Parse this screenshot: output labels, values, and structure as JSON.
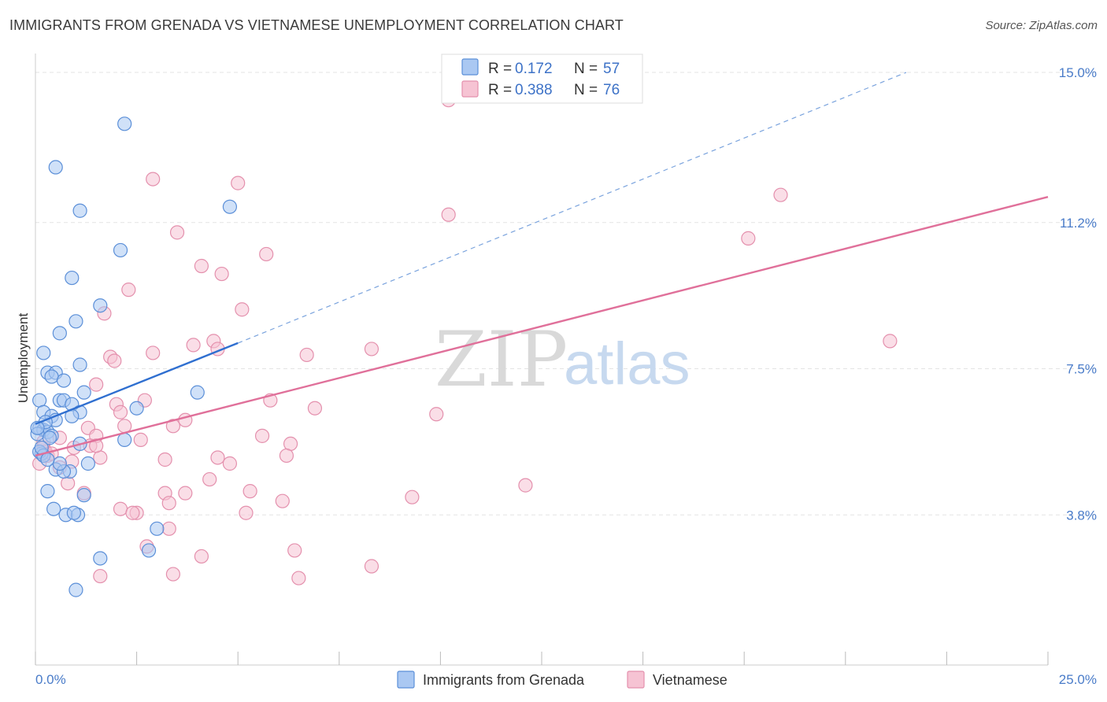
{
  "title": "IMMIGRANTS FROM GRENADA VS VIETNAMESE UNEMPLOYMENT CORRELATION CHART",
  "source": "Source: ZipAtlas.com",
  "watermark": {
    "zip": "ZIP",
    "atlas": "atlas"
  },
  "colors": {
    "blue_fill": "#aac8f2",
    "blue_stroke": "#5b8fd8",
    "blue_line": "#2f6fd0",
    "pink_fill": "#f6c3d3",
    "pink_stroke": "#e490ad",
    "pink_line": "#e0709a",
    "grid": "#e3e3e3",
    "tick_label": "#4a7cc9"
  },
  "legend": {
    "rows": [
      {
        "r_label": "R =",
        "r_value": "0.172",
        "n_label": "N =",
        "n_value": "57"
      },
      {
        "r_label": "R =",
        "r_value": "0.388",
        "n_label": "N =",
        "n_value": "76"
      }
    ]
  },
  "bottom_legend": [
    "Immigrants from Grenada",
    "Vietnamese"
  ],
  "chart_data": {
    "type": "scatter",
    "title": "IMMIGRANTS FROM GRENADA VS VIETNAMESE UNEMPLOYMENT CORRELATION CHART",
    "xlabel": "",
    "ylabel": "Unemployment",
    "xlim": [
      0,
      25
    ],
    "ylim": [
      0,
      15.3
    ],
    "x_tick_labels": [
      "0.0%",
      "25.0%"
    ],
    "y_ticks": [
      3.8,
      7.5,
      11.2,
      15.0
    ],
    "y_tick_labels": [
      "3.8%",
      "7.5%",
      "11.2%",
      "15.0%"
    ],
    "grid": true,
    "legend_position": "top-center",
    "series": [
      {
        "name": "Immigrants from Grenada",
        "r": 0.172,
        "n": 57,
        "trend": {
          "x0": 0,
          "y0": 6.1,
          "x1": 5,
          "y1": 8.15,
          "dashed_to_x": 21.5,
          "dashed_to_y": 15.0
        },
        "points": [
          [
            2.2,
            13.7
          ],
          [
            0.5,
            12.6
          ],
          [
            1.1,
            11.5
          ],
          [
            4.8,
            11.6
          ],
          [
            2.1,
            10.5
          ],
          [
            0.9,
            9.8
          ],
          [
            1.6,
            9.1
          ],
          [
            1.0,
            8.7
          ],
          [
            0.6,
            8.4
          ],
          [
            0.2,
            7.9
          ],
          [
            0.3,
            7.4
          ],
          [
            0.5,
            7.4
          ],
          [
            0.4,
            7.3
          ],
          [
            0.7,
            7.2
          ],
          [
            1.1,
            7.6
          ],
          [
            1.2,
            6.9
          ],
          [
            4.0,
            6.9
          ],
          [
            0.1,
            6.7
          ],
          [
            0.6,
            6.7
          ],
          [
            0.7,
            6.7
          ],
          [
            0.9,
            6.6
          ],
          [
            2.5,
            6.5
          ],
          [
            0.2,
            6.4
          ],
          [
            1.1,
            6.4
          ],
          [
            0.9,
            6.3
          ],
          [
            0.4,
            6.3
          ],
          [
            0.5,
            6.2
          ],
          [
            0.1,
            6.0
          ],
          [
            0.2,
            5.95
          ],
          [
            0.3,
            5.9
          ],
          [
            0.05,
            5.85
          ],
          [
            0.4,
            5.8
          ],
          [
            0.35,
            5.75
          ],
          [
            2.2,
            5.7
          ],
          [
            1.1,
            5.6
          ],
          [
            0.15,
            5.35
          ],
          [
            0.1,
            5.4
          ],
          [
            0.2,
            5.3
          ],
          [
            1.3,
            5.1
          ],
          [
            0.5,
            4.95
          ],
          [
            0.85,
            4.9
          ],
          [
            0.7,
            4.9
          ],
          [
            0.3,
            4.4
          ],
          [
            1.2,
            4.3
          ],
          [
            0.45,
            3.95
          ],
          [
            0.75,
            3.8
          ],
          [
            1.05,
            3.8
          ],
          [
            0.95,
            3.85
          ],
          [
            3.0,
            3.45
          ],
          [
            2.8,
            2.9
          ],
          [
            1.6,
            2.7
          ],
          [
            1.0,
            1.9
          ],
          [
            0.15,
            5.5
          ],
          [
            0.25,
            6.15
          ],
          [
            0.05,
            6.0
          ],
          [
            0.6,
            5.1
          ],
          [
            0.3,
            5.2
          ]
        ]
      },
      {
        "name": "Vietnamese",
        "r": 0.388,
        "n": 76,
        "trend": {
          "x0": 0,
          "y0": 5.3,
          "x1": 25,
          "y1": 11.85
        },
        "points": [
          [
            10.2,
            14.3
          ],
          [
            2.9,
            12.3
          ],
          [
            5.0,
            12.2
          ],
          [
            18.4,
            11.9
          ],
          [
            10.2,
            11.4
          ],
          [
            17.6,
            10.8
          ],
          [
            3.5,
            10.95
          ],
          [
            5.7,
            10.4
          ],
          [
            4.1,
            10.1
          ],
          [
            4.6,
            9.9
          ],
          [
            2.3,
            9.5
          ],
          [
            5.1,
            9.0
          ],
          [
            1.7,
            8.9
          ],
          [
            21.1,
            8.2
          ],
          [
            3.9,
            8.1
          ],
          [
            4.4,
            8.2
          ],
          [
            4.5,
            8.0
          ],
          [
            8.3,
            8.0
          ],
          [
            6.7,
            7.85
          ],
          [
            2.9,
            7.9
          ],
          [
            1.85,
            7.8
          ],
          [
            1.95,
            7.7
          ],
          [
            1.5,
            7.1
          ],
          [
            2.7,
            6.7
          ],
          [
            5.8,
            6.7
          ],
          [
            2.0,
            6.6
          ],
          [
            6.9,
            6.5
          ],
          [
            2.1,
            6.4
          ],
          [
            9.9,
            6.35
          ],
          [
            3.7,
            6.2
          ],
          [
            2.2,
            6.05
          ],
          [
            3.4,
            6.05
          ],
          [
            1.3,
            6.0
          ],
          [
            5.6,
            5.8
          ],
          [
            1.5,
            5.8
          ],
          [
            0.6,
            5.75
          ],
          [
            2.6,
            5.7
          ],
          [
            6.3,
            5.6
          ],
          [
            1.35,
            5.55
          ],
          [
            0.95,
            5.5
          ],
          [
            0.2,
            5.5
          ],
          [
            0.25,
            5.4
          ],
          [
            0.3,
            5.3
          ],
          [
            1.6,
            5.25
          ],
          [
            3.2,
            5.2
          ],
          [
            4.5,
            5.25
          ],
          [
            6.2,
            5.3
          ],
          [
            4.8,
            5.1
          ],
          [
            0.9,
            5.15
          ],
          [
            0.6,
            5.0
          ],
          [
            4.3,
            4.7
          ],
          [
            0.8,
            4.6
          ],
          [
            12.1,
            4.55
          ],
          [
            1.2,
            4.35
          ],
          [
            3.2,
            4.35
          ],
          [
            3.7,
            4.35
          ],
          [
            5.3,
            4.4
          ],
          [
            9.3,
            4.25
          ],
          [
            6.1,
            4.15
          ],
          [
            3.3,
            4.1
          ],
          [
            2.1,
            3.95
          ],
          [
            2.5,
            3.85
          ],
          [
            5.2,
            3.85
          ],
          [
            2.4,
            3.85
          ],
          [
            1.5,
            5.55
          ],
          [
            3.3,
            3.45
          ],
          [
            2.75,
            3.0
          ],
          [
            6.4,
            2.9
          ],
          [
            4.1,
            2.75
          ],
          [
            8.3,
            2.5
          ],
          [
            1.6,
            2.25
          ],
          [
            3.4,
            2.3
          ],
          [
            6.5,
            2.2
          ],
          [
            0.2,
            5.65
          ],
          [
            0.4,
            5.35
          ],
          [
            0.1,
            5.1
          ]
        ]
      }
    ]
  }
}
